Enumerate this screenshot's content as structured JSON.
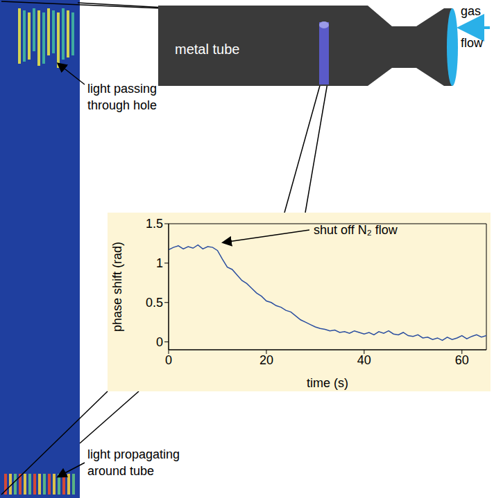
{
  "chart_data": {
    "type": "line",
    "x_label": "time (s)",
    "y_label": "phase shift (rad)",
    "annotation": "shut off N₂ flow",
    "xlim": [
      0,
      65
    ],
    "xticks": [
      0,
      20,
      40,
      60
    ],
    "ylim": [
      -0.1,
      1.5
    ],
    "yticks": [
      0,
      0.5,
      1,
      1.5
    ],
    "grid": false,
    "color": "#2b4ea0",
    "x": [
      0,
      1,
      2,
      3,
      4,
      5,
      6,
      7,
      8,
      9,
      10,
      11,
      12,
      13,
      14,
      15,
      16,
      17,
      18,
      19,
      20,
      21,
      22,
      23,
      24,
      25,
      26,
      27,
      28,
      29,
      30,
      31,
      32,
      33,
      34,
      35,
      36,
      37,
      38,
      39,
      40,
      41,
      42,
      43,
      44,
      45,
      46,
      47,
      48,
      49,
      50,
      51,
      52,
      53,
      54,
      55,
      56,
      57,
      58,
      59,
      60,
      61,
      62,
      63,
      64,
      65
    ],
    "values": [
      1.17,
      1.2,
      1.22,
      1.18,
      1.21,
      1.19,
      1.23,
      1.18,
      1.21,
      1.2,
      1.16,
      1.05,
      0.95,
      0.92,
      0.85,
      0.78,
      0.74,
      0.68,
      0.62,
      0.58,
      0.52,
      0.5,
      0.46,
      0.44,
      0.4,
      0.38,
      0.33,
      0.28,
      0.25,
      0.22,
      0.19,
      0.17,
      0.16,
      0.14,
      0.15,
      0.12,
      0.13,
      0.11,
      0.14,
      0.12,
      0.1,
      0.12,
      0.09,
      0.13,
      0.11,
      0.14,
      0.1,
      0.09,
      0.12,
      0.08,
      0.07,
      0.09,
      0.05,
      0.06,
      0.03,
      0.05,
      0.02,
      0.06,
      0.03,
      0.05,
      0.08,
      0.04,
      0.07,
      0.09,
      0.06,
      0.08
    ]
  },
  "diagram": {
    "tube_label": "metal tube",
    "flow_label": "gas flow",
    "top_strip_label": "light passing through hole",
    "bottom_strip_label": "light propagating around tube"
  }
}
